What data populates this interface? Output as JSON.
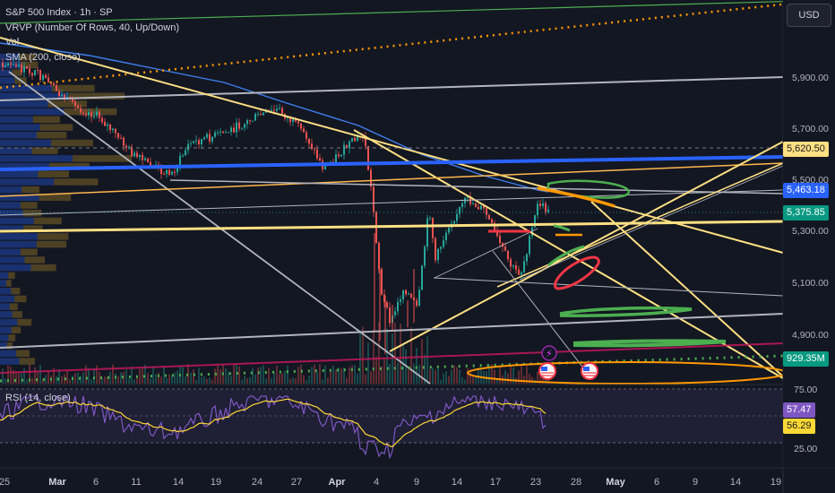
{
  "legend": {
    "symbol": "S&P 500 Index · 1h · SP",
    "vrvp": "VRVP (Number Of Rows, 40, Up/Down)",
    "vol": "Vol",
    "sma": "SMA (200, close)",
    "rsi": "RSI (14, close)"
  },
  "currency_button": "USD",
  "price_scale": {
    "ticks": [
      "5,900.00",
      "5,700.00",
      "5,500.00",
      "5,300.00",
      "5,100.00",
      "4,900.00"
    ],
    "tags": {
      "resistance": "5,620.50",
      "sma": "5,463.18",
      "last": "5,375.85",
      "volume": "929.35M"
    }
  },
  "rsi_scale": {
    "ticks": [
      "75.00",
      "25.00"
    ],
    "tags": {
      "rsi": "57.47",
      "ma": "56.29"
    }
  },
  "time_axis": [
    "25",
    "Mar",
    "6",
    "11",
    "14",
    "19",
    "24",
    "27",
    "Apr",
    "4",
    "9",
    "14",
    "17",
    "23",
    "28",
    "May",
    "6",
    "9",
    "14",
    "19"
  ],
  "colors": {
    "background": "#131722",
    "up": "#26a69a",
    "down": "#ef5350",
    "yellow": "#ffe082",
    "blue": "#2962ff",
    "orange": "#ff9800",
    "green": "#4caf50",
    "red": "#f23645",
    "sma": "#3f7ff0",
    "rsi_line": "#7e57c2",
    "rsi_ma": "#fdd835"
  }
}
